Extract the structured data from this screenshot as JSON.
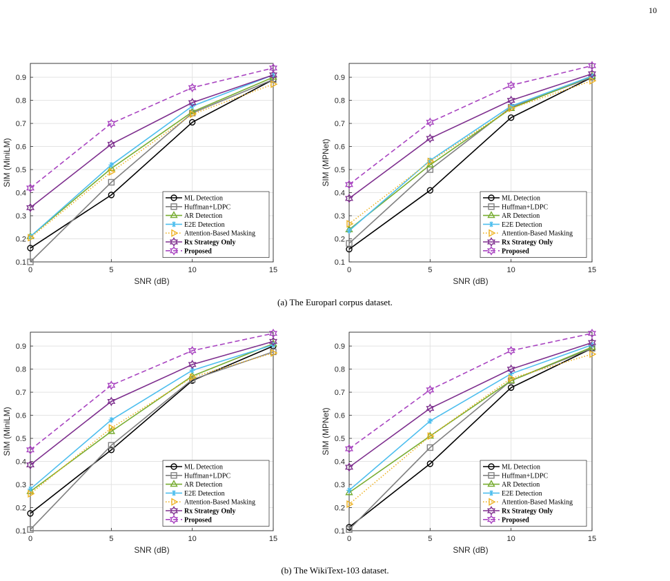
{
  "page_number": "10",
  "captions": {
    "a": "(a) The Europarl corpus dataset.",
    "b": "(b) The WikiText-103 dataset."
  },
  "series_styles": [
    {
      "name": "ML Detection",
      "color": "#000000",
      "marker": "circle",
      "dash": "solid",
      "bold": false
    },
    {
      "name": "Huffman+LDPC",
      "color": "#808080",
      "marker": "square",
      "dash": "solid",
      "bold": false
    },
    {
      "name": "AR Detection",
      "color": "#77AC30",
      "marker": "triangle",
      "dash": "solid",
      "bold": false
    },
    {
      "name": "E2E Detection",
      "color": "#4DBEEE",
      "marker": "asterisk",
      "dash": "solid",
      "bold": false
    },
    {
      "name": "Attention-Based Masking",
      "color": "#EDB120",
      "marker": "triangle-right",
      "dash": "dotted",
      "bold": false
    },
    {
      "name": "Rx Strategy Only",
      "color": "#7E2F8E",
      "marker": "hexagram",
      "dash": "solid",
      "bold": true
    },
    {
      "name": "Proposed",
      "color": "#A843C0",
      "marker": "hexagram",
      "dash": "dashed",
      "bold": true
    }
  ],
  "chart_data": [
    {
      "type": "line",
      "xlabel": "SNR (dB)",
      "ylabel": "SIM (MiniLM)",
      "x": [
        0,
        5,
        10,
        15
      ],
      "xlim": [
        0,
        15
      ],
      "ylim": [
        0.1,
        0.96
      ],
      "xticks": [
        "0",
        "5",
        "10",
        "15"
      ],
      "yticks": [
        "0.1",
        "0.2",
        "0.3",
        "0.4",
        "0.5",
        "0.6",
        "0.7",
        "0.8",
        "0.9"
      ],
      "grid": true,
      "legend_position": "bottom-right",
      "series": [
        {
          "name": "ML Detection",
          "values": [
            0.16,
            0.39,
            0.705,
            0.89
          ]
        },
        {
          "name": "Huffman+LDPC",
          "values": [
            0.1,
            0.445,
            0.745,
            0.89
          ]
        },
        {
          "name": "AR Detection",
          "values": [
            0.21,
            0.505,
            0.75,
            0.9
          ]
        },
        {
          "name": "E2E Detection",
          "values": [
            0.21,
            0.52,
            0.775,
            0.91
          ]
        },
        {
          "name": "Attention-Based Masking",
          "values": [
            0.205,
            0.49,
            0.74,
            0.87
          ]
        },
        {
          "name": "Rx Strategy Only",
          "values": [
            0.335,
            0.61,
            0.79,
            0.91
          ]
        },
        {
          "name": "Proposed",
          "values": [
            0.42,
            0.7,
            0.855,
            0.94
          ]
        }
      ]
    },
    {
      "type": "line",
      "xlabel": "SNR (dB)",
      "ylabel": "SIM (MPNet)",
      "x": [
        0,
        5,
        10,
        15
      ],
      "xlim": [
        0,
        15
      ],
      "ylim": [
        0.1,
        0.96
      ],
      "xticks": [
        "0",
        "5",
        "10",
        "15"
      ],
      "yticks": [
        "0.1",
        "0.2",
        "0.3",
        "0.4",
        "0.5",
        "0.6",
        "0.7",
        "0.8",
        "0.9"
      ],
      "grid": true,
      "legend_position": "bottom-right",
      "series": [
        {
          "name": "ML Detection",
          "values": [
            0.155,
            0.41,
            0.725,
            0.9
          ]
        },
        {
          "name": "Huffman+LDPC",
          "values": [
            0.18,
            0.5,
            0.77,
            0.9
          ]
        },
        {
          "name": "AR Detection",
          "values": [
            0.24,
            0.52,
            0.765,
            0.905
          ]
        },
        {
          "name": "E2E Detection",
          "values": [
            0.235,
            0.54,
            0.775,
            0.905
          ]
        },
        {
          "name": "Attention-Based Masking",
          "values": [
            0.265,
            0.535,
            0.765,
            0.885
          ]
        },
        {
          "name": "Rx Strategy Only",
          "values": [
            0.375,
            0.635,
            0.8,
            0.915
          ]
        },
        {
          "name": "Proposed",
          "values": [
            0.435,
            0.705,
            0.865,
            0.95
          ]
        }
      ]
    },
    {
      "type": "line",
      "xlabel": "SNR (dB)",
      "ylabel": "SIM (MiniLM)",
      "x": [
        0,
        5,
        10,
        15
      ],
      "xlim": [
        0,
        15
      ],
      "ylim": [
        0.1,
        0.96
      ],
      "xticks": [
        "0",
        "5",
        "10",
        "15"
      ],
      "yticks": [
        "0.1",
        "0.2",
        "0.3",
        "0.4",
        "0.5",
        "0.6",
        "0.7",
        "0.8",
        "0.9"
      ],
      "grid": true,
      "legend_position": "bottom-right",
      "series": [
        {
          "name": "ML Detection",
          "values": [
            0.175,
            0.45,
            0.75,
            0.9
          ]
        },
        {
          "name": "Huffman+LDPC",
          "values": [
            0.105,
            0.47,
            0.755,
            0.875
          ]
        },
        {
          "name": "AR Detection",
          "values": [
            0.27,
            0.53,
            0.77,
            0.91
          ]
        },
        {
          "name": "E2E Detection",
          "values": [
            0.28,
            0.58,
            0.795,
            0.905
          ]
        },
        {
          "name": "Attention-Based Masking",
          "values": [
            0.26,
            0.545,
            0.765,
            0.87
          ]
        },
        {
          "name": "Rx Strategy Only",
          "values": [
            0.385,
            0.66,
            0.82,
            0.92
          ]
        },
        {
          "name": "Proposed",
          "values": [
            0.45,
            0.73,
            0.88,
            0.955
          ]
        }
      ]
    },
    {
      "type": "line",
      "xlabel": "SNR (dB)",
      "ylabel": "SIM (MPNet)",
      "x": [
        0,
        5,
        10,
        15
      ],
      "xlim": [
        0,
        15
      ],
      "ylim": [
        0.1,
        0.96
      ],
      "xticks": [
        "0",
        "5",
        "10",
        "15"
      ],
      "yticks": [
        "0.1",
        "0.2",
        "0.3",
        "0.4",
        "0.5",
        "0.6",
        "0.7",
        "0.8",
        "0.9"
      ],
      "grid": true,
      "legend_position": "bottom-right",
      "series": [
        {
          "name": "ML Detection",
          "values": [
            0.115,
            0.39,
            0.72,
            0.89
          ]
        },
        {
          "name": "Huffman+LDPC",
          "values": [
            0.105,
            0.46,
            0.75,
            0.89
          ]
        },
        {
          "name": "AR Detection",
          "values": [
            0.265,
            0.51,
            0.75,
            0.895
          ]
        },
        {
          "name": "E2E Detection",
          "values": [
            0.275,
            0.575,
            0.78,
            0.905
          ]
        },
        {
          "name": "Attention-Based Masking",
          "values": [
            0.215,
            0.51,
            0.76,
            0.865
          ]
        },
        {
          "name": "Rx Strategy Only",
          "values": [
            0.375,
            0.63,
            0.8,
            0.915
          ]
        },
        {
          "name": "Proposed",
          "values": [
            0.455,
            0.71,
            0.88,
            0.955
          ]
        }
      ]
    }
  ]
}
